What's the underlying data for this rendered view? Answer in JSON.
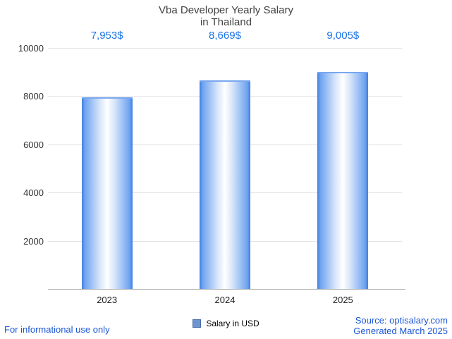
{
  "title": {
    "line1": "Vba Developer Yearly Salary",
    "line2": "in Thailand"
  },
  "chart_data": {
    "type": "bar",
    "title": "Vba Developer Yearly Salary in Thailand",
    "categories": [
      "2023",
      "2024",
      "2025"
    ],
    "values": [
      7953,
      8669,
      9005
    ],
    "value_labels": [
      "7,953$",
      "8,669$",
      "9,005$"
    ],
    "xlabel": "",
    "ylabel": "",
    "ylim": [
      0,
      10000
    ],
    "yticks": [
      2000,
      4000,
      6000,
      8000,
      10000
    ],
    "grid": true,
    "legend_position": "bottom"
  },
  "legend": {
    "label": "Salary in USD"
  },
  "footer": {
    "left": "For informational use only",
    "source_line1": "Source: optisalary.com",
    "source_line2": "Generated March 2025"
  },
  "colors": {
    "accent_blue": "#1a73e8",
    "link_blue": "#1a56d6",
    "bar_edge": "#3f7fe0",
    "bar_center": "#ffffff",
    "bar_top_cap": "#7aa7ef",
    "gridline": "#e3e3e3",
    "axis_line": "#b5b5b5",
    "title_text": "#424242",
    "legend_marker": "#6d94cf"
  }
}
